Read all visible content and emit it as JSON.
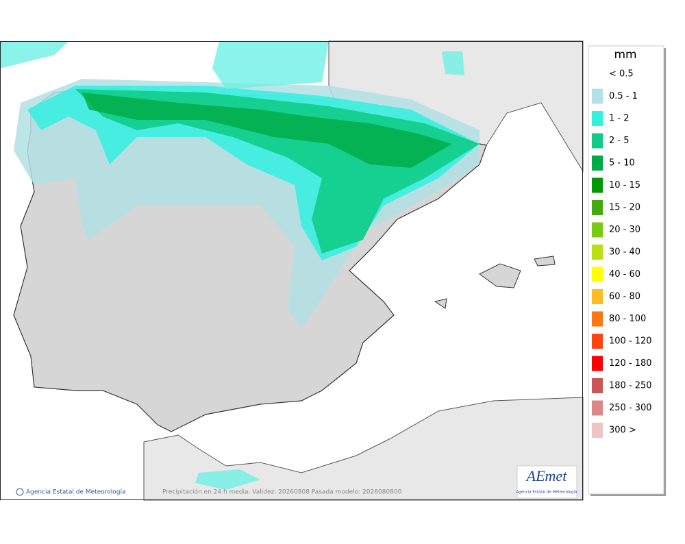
{
  "legend": {
    "title": "mm",
    "items": [
      {
        "label": "< 0.5",
        "color": "#ffffff"
      },
      {
        "label": "0.5 - 1",
        "color": "#b2e0e4"
      },
      {
        "label": "1 - 2",
        "color": "#33f0df"
      },
      {
        "label": "2 - 5",
        "color": "#11cc88"
      },
      {
        "label": "5 - 10",
        "color": "#00aa44"
      },
      {
        "label": "10 - 15",
        "color": "#009a00"
      },
      {
        "label": "15 - 20",
        "color": "#44aa11"
      },
      {
        "label": "20 - 30",
        "color": "#77cc11"
      },
      {
        "label": "30 - 40",
        "color": "#bbe011"
      },
      {
        "label": "40 - 60",
        "color": "#ffff00"
      },
      {
        "label": "60 - 80",
        "color": "#ffbb22"
      },
      {
        "label": "80 - 100",
        "color": "#ff7711"
      },
      {
        "label": "100 - 120",
        "color": "#ff4411"
      },
      {
        "label": "120 - 180",
        "color": "#ff0000"
      },
      {
        "label": "180 - 250",
        "color": "#cc5555"
      },
      {
        "label": "250 - 300",
        "color": "#dd8888"
      },
      {
        "label": "300 >",
        "color": "#eec4c4"
      }
    ]
  },
  "footer": {
    "agency": "Agencia Estatal de Meteorología",
    "caption": "Precipitación en 24 h media. Validez: 20260808 Pasada modelo: 2026080800"
  },
  "logo": {
    "name": "AEmet",
    "subtitle": "Agencia Estatal de Meteorología"
  }
}
